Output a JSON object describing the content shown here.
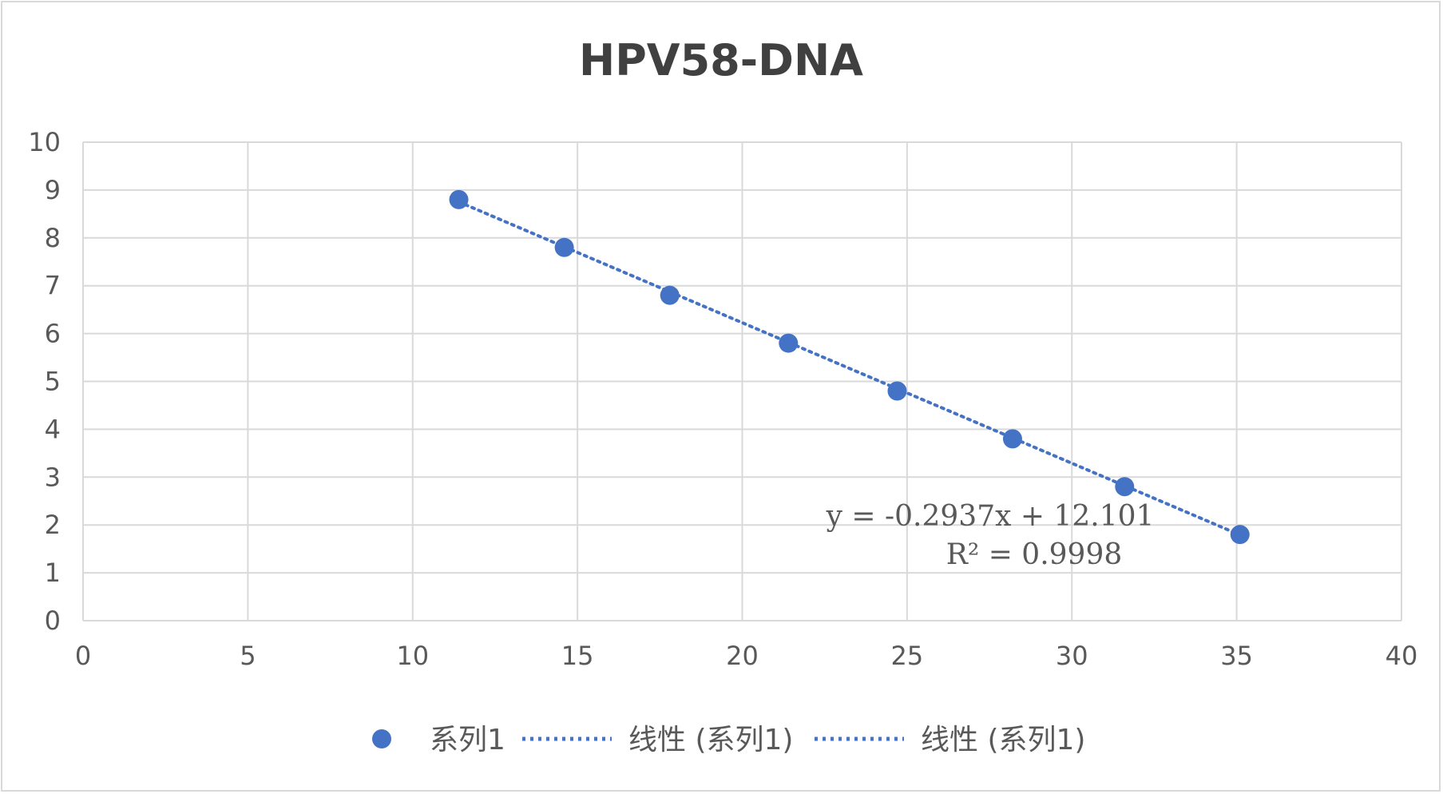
{
  "chart_data": {
    "type": "scatter",
    "title": "HPV58-DNA",
    "xlim": [
      0,
      40
    ],
    "ylim": [
      0,
      10
    ],
    "x_ticks": [
      "0",
      "5",
      "10",
      "15",
      "20",
      "25",
      "30",
      "35",
      "40"
    ],
    "y_ticks": [
      "0",
      "1",
      "2",
      "3",
      "4",
      "5",
      "6",
      "7",
      "8",
      "9",
      "10"
    ],
    "grid": true,
    "legend_position": "bottom",
    "series": [
      {
        "name": "系列1",
        "color": "#4472c4",
        "points": [
          {
            "x": 11.4,
            "y": 8.8
          },
          {
            "x": 14.6,
            "y": 7.8
          },
          {
            "x": 17.8,
            "y": 6.8
          },
          {
            "x": 21.4,
            "y": 5.8
          },
          {
            "x": 24.7,
            "y": 4.8
          },
          {
            "x": 28.2,
            "y": 3.8
          },
          {
            "x": 31.6,
            "y": 2.8
          },
          {
            "x": 35.1,
            "y": 1.8
          }
        ]
      }
    ],
    "trendline": {
      "type": "linear",
      "slope": -0.2937,
      "intercept": 12.101,
      "x_range": [
        11.4,
        35.1
      ],
      "equation": "y = -0.2937x + 12.101",
      "r2_label": "R² = 0.9998"
    },
    "legend": [
      "系列1",
      "线性 (系列1)",
      "线性 (系列1)"
    ]
  }
}
